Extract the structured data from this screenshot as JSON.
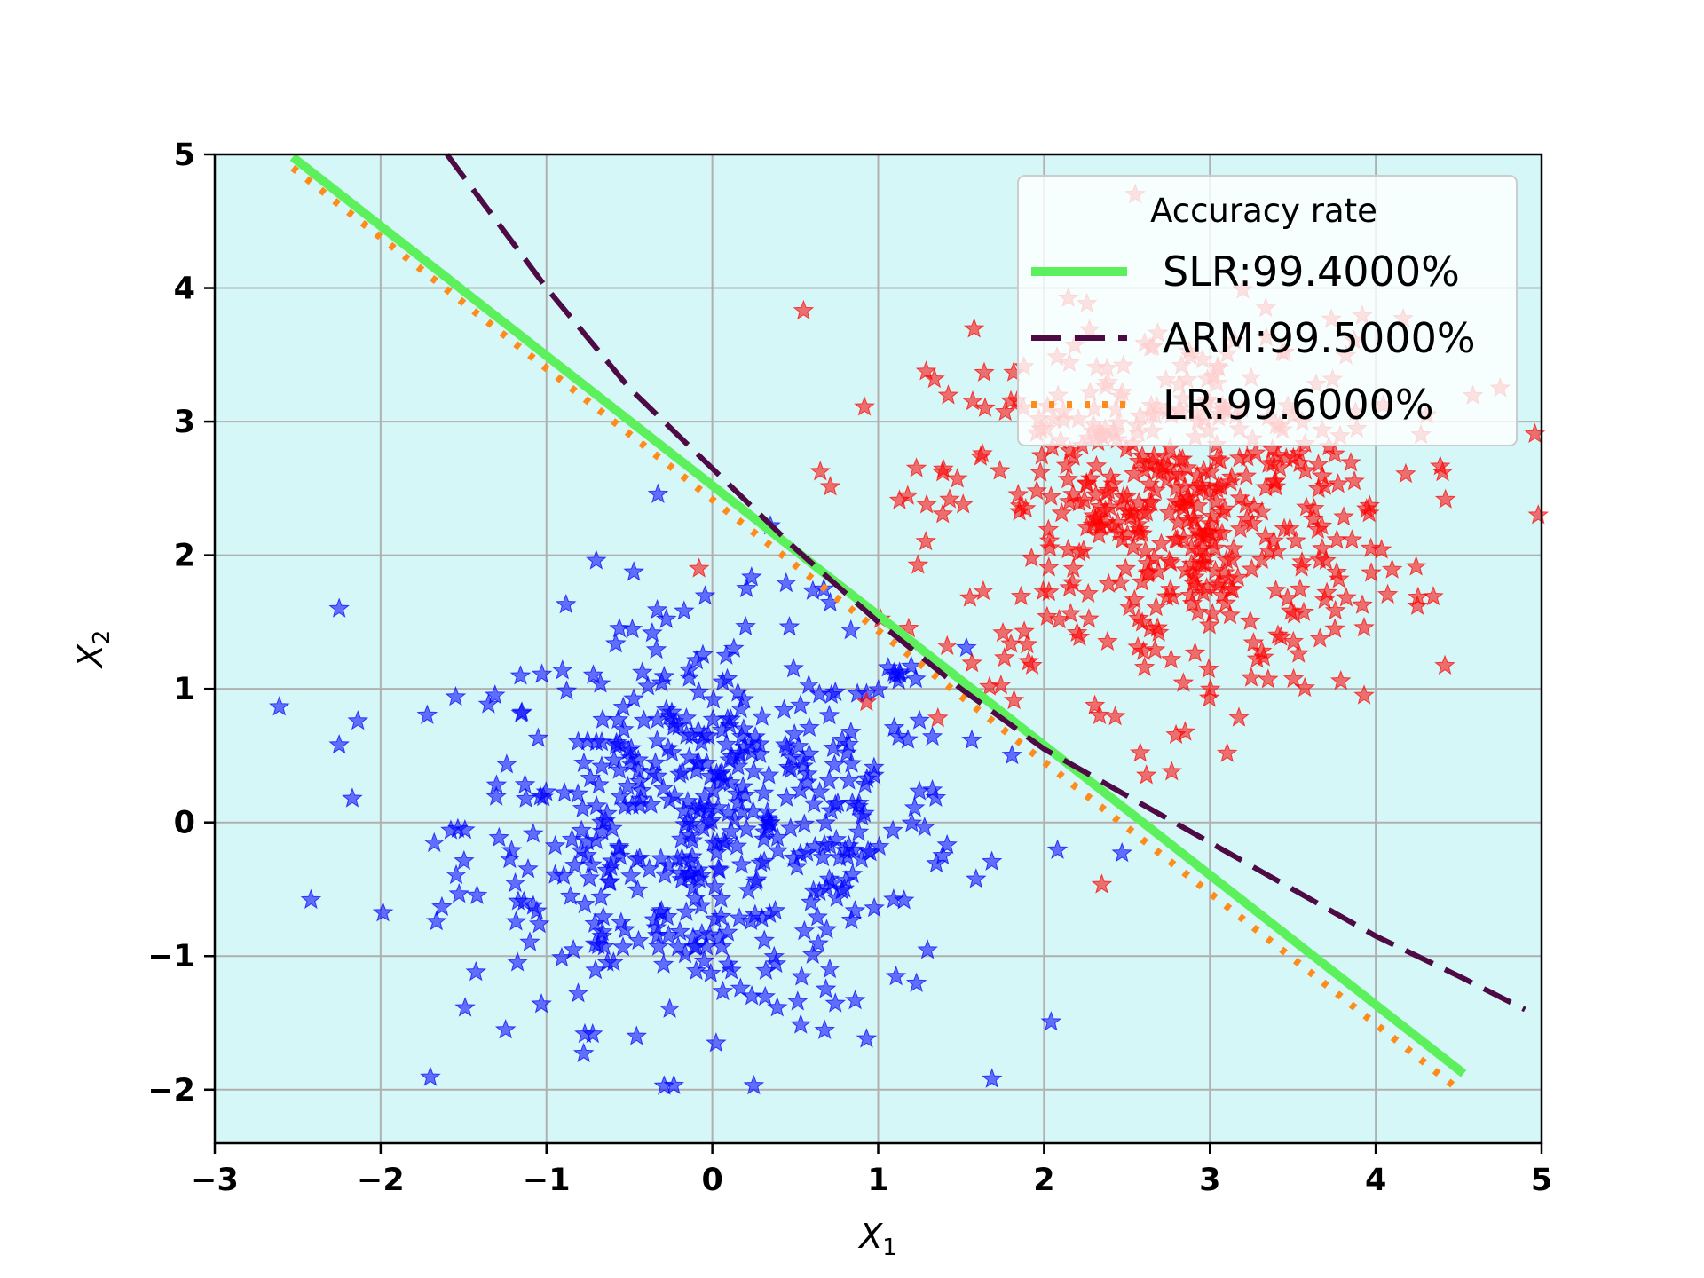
{
  "chart_data": {
    "type": "scatter",
    "title": "",
    "xlabel": "X",
    "xlabel_subscript": "1",
    "ylabel": "X",
    "ylabel_subscript": "2",
    "xlim": [
      -3,
      5
    ],
    "ylim": [
      -2.4,
      5
    ],
    "xticks": [
      -3,
      -2,
      -1,
      0,
      1,
      2,
      3,
      4,
      5
    ],
    "yticks": [
      -2,
      -1,
      0,
      1,
      2,
      3,
      4,
      5
    ],
    "grid": true,
    "colors": {
      "plot_background": "#d5f7f7",
      "grid": "#b0b0b0",
      "class_blue": "#0000ff",
      "class_red": "#ff0000",
      "slr": "#5cf05c",
      "arm": "#4d0a45",
      "lr": "#ff8c1a"
    },
    "legend": {
      "title": "Accuracy rate",
      "position": "upper-right"
    },
    "lines": [
      {
        "name": "SLR:99.4000%",
        "style": "solid",
        "color": "#5cf05c",
        "x": [
          -2.53,
          4.53
        ],
        "y": [
          4.98,
          -1.88
        ]
      },
      {
        "name": "ARM:99.5000%",
        "style": "dashed",
        "color": "#4d0a45",
        "x": [
          -1.6,
          -1.0,
          -0.5,
          0.0,
          0.5,
          1.0,
          1.5,
          2.0,
          2.5,
          3.0,
          3.5,
          4.0,
          4.5,
          4.9
        ],
        "y": [
          5.0,
          4.0,
          3.25,
          2.65,
          2.05,
          1.5,
          1.0,
          0.55,
          0.2,
          -0.15,
          -0.5,
          -0.85,
          -1.15,
          -1.4
        ]
      },
      {
        "name": "LR:99.6000%",
        "style": "dotted",
        "color": "#ff8c1a",
        "x": [
          -2.53,
          4.5
        ],
        "y": [
          4.9,
          -2.0
        ]
      }
    ],
    "scatter_series": [
      {
        "name": "class-blue",
        "color": "#0000ff",
        "marker": "star",
        "count": 500,
        "center": [
          0.0,
          0.0
        ],
        "std": [
          0.75,
          0.75
        ]
      },
      {
        "name": "class-red",
        "color": "#ff0000",
        "marker": "star",
        "count": 500,
        "center": [
          2.75,
          2.35
        ],
        "std": [
          0.7,
          0.7
        ]
      }
    ],
    "scatter_points": [
      {
        "series": "class-blue",
        "x": -2.25,
        "y": 1.6
      },
      {
        "series": "class-blue",
        "x": -2.25,
        "y": 0.58
      },
      {
        "series": "class-blue",
        "x": -2.42,
        "y": -0.58
      },
      {
        "series": "class-blue",
        "x": -0.7,
        "y": 1.96
      },
      {
        "series": "class-blue",
        "x": 0.25,
        "y": -1.97
      },
      {
        "series": "class-blue",
        "x": 0.93,
        "y": -1.62
      },
      {
        "series": "class-blue",
        "x": 2.47,
        "y": -0.23
      },
      {
        "series": "class-blue",
        "x": 0.35,
        "y": 2.22
      },
      {
        "series": "class-red",
        "x": 0.55,
        "y": 3.83
      },
      {
        "series": "class-red",
        "x": 4.98,
        "y": 2.3
      },
      {
        "series": "class-red",
        "x": 4.75,
        "y": 3.25
      },
      {
        "series": "class-red",
        "x": 2.55,
        "y": 4.7
      },
      {
        "series": "class-red",
        "x": -0.08,
        "y": 1.9
      },
      {
        "series": "class-red",
        "x": 0.93,
        "y": 0.9
      },
      {
        "series": "class-red",
        "x": 1.36,
        "y": 0.78
      },
      {
        "series": "class-red",
        "x": 2.58,
        "y": 0.52
      },
      {
        "series": "class-red",
        "x": 2.77,
        "y": 0.38
      },
      {
        "series": "class-red",
        "x": 3.93,
        "y": 0.95
      }
    ]
  }
}
